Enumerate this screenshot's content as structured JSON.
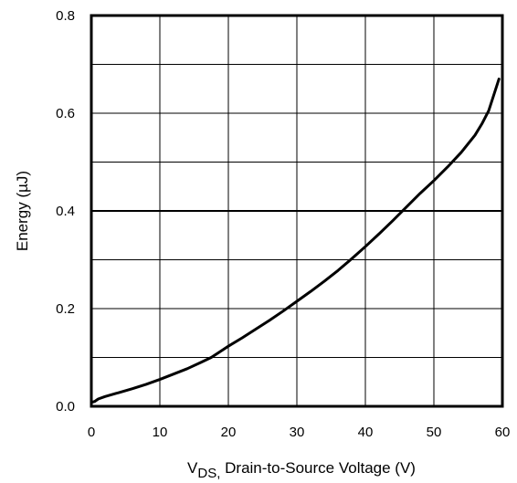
{
  "chart_data": {
    "type": "line",
    "title": "",
    "xlabel": {
      "main": "V",
      "subscript": "DS,",
      "rest": " Drain-to-Source Voltage (V)"
    },
    "ylabel": "Energy (µJ)",
    "xlim": [
      0,
      60
    ],
    "ylim": [
      0,
      0.8
    ],
    "xticks": [
      "0",
      "10",
      "20",
      "30",
      "40",
      "50",
      "60"
    ],
    "yticks": [
      "0.0",
      "0.2",
      "0.4",
      "0.6",
      "0.8"
    ],
    "grid": true,
    "series": [
      {
        "x": [
          0,
          0.5,
          1,
          2,
          4,
          6,
          8,
          10,
          12,
          14,
          16,
          17.5,
          20,
          22,
          24,
          26,
          28,
          30,
          32,
          34,
          36,
          38,
          40,
          42,
          44,
          46,
          48,
          50,
          52,
          54,
          56,
          57,
          58,
          59.5
        ],
        "y": [
          0.008,
          0.01,
          0.015,
          0.02,
          0.028,
          0.036,
          0.045,
          0.055,
          0.066,
          0.077,
          0.09,
          0.1,
          0.123,
          0.14,
          0.158,
          0.176,
          0.195,
          0.215,
          0.235,
          0.256,
          0.278,
          0.302,
          0.327,
          0.353,
          0.38,
          0.408,
          0.436,
          0.462,
          0.49,
          0.52,
          0.555,
          0.578,
          0.605,
          0.67
        ],
        "color": "#000000"
      }
    ]
  }
}
